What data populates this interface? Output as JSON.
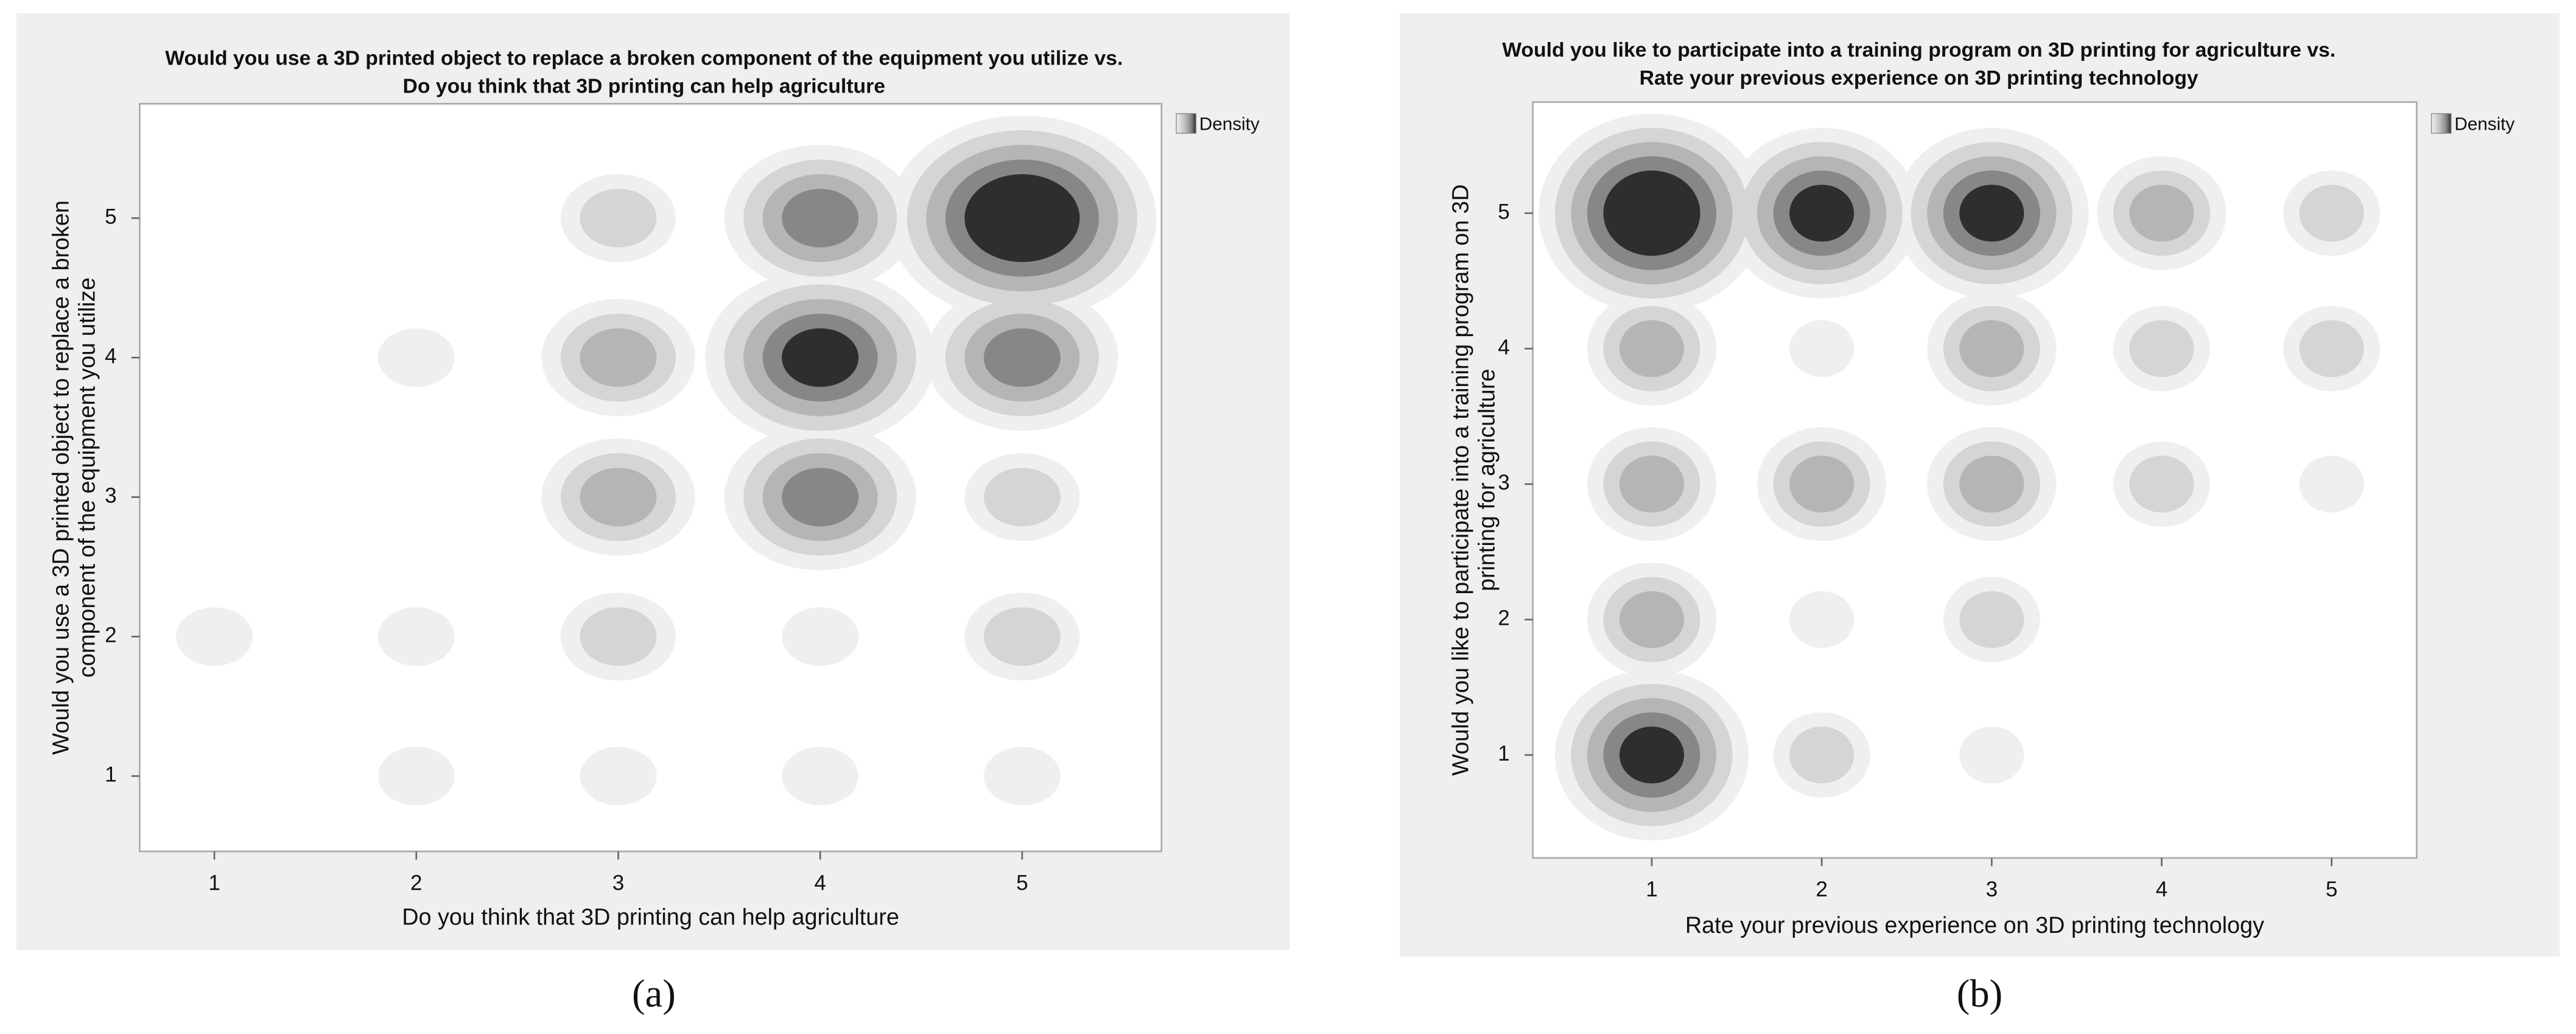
{
  "chart_data": [
    {
      "type": "contour",
      "title": [
        "Would you use a 3D printed object to replace a broken component of the equipment you utilize vs.",
        "Do you think that 3D printing can help agriculture"
      ],
      "x_label": "Do you think that 3D printing can help agriculture",
      "y_label": [
        "Would you use a 3D printed object to replace a broken",
        "component of the equipment you utilize"
      ],
      "legend": "Density",
      "caption": "(a)",
      "xlim": [
        0.63,
        5.69
      ],
      "ylim": [
        0.46,
        5.82
      ],
      "xticks": [
        1,
        2,
        3,
        4,
        5
      ],
      "yticks": [
        1,
        2,
        3,
        4,
        5
      ],
      "colors": [
        "#efefef",
        "#d5d5d5",
        "#b5b5b5",
        "#878787",
        "#2e2e2e"
      ],
      "points": {
        "x": [
          1,
          2,
          2,
          2,
          3,
          3,
          3,
          3,
          3,
          4,
          4,
          4,
          4,
          4,
          5,
          5,
          5,
          5,
          5
        ],
        "y": [
          2,
          2,
          1,
          4,
          5,
          4,
          3,
          2,
          1,
          5,
          4,
          3,
          2,
          1,
          5,
          4,
          3,
          2,
          1
        ],
        "density": [
          1,
          1,
          1,
          1,
          2,
          3,
          3,
          2,
          1,
          4,
          5,
          4,
          1,
          1,
          6,
          4,
          2,
          2,
          1
        ]
      }
    },
    {
      "type": "contour",
      "title": [
        "Would you like to participate into a training program on 3D printing for agriculture vs.",
        "Rate your previous experience on 3D printing technology"
      ],
      "x_label": "Rate your previous experience on 3D printing technology",
      "y_label": [
        "Would you like to participate into a training program on 3D",
        "printing for agriculture"
      ],
      "legend": "Density",
      "caption": "(b)",
      "xlim": [
        0.3,
        5.5
      ],
      "ylim": [
        0.24,
        5.82
      ],
      "xticks": [
        1,
        2,
        3,
        4,
        5
      ],
      "yticks": [
        1,
        2,
        3,
        4,
        5
      ],
      "colors": [
        "#efefef",
        "#d5d5d5",
        "#b5b5b5",
        "#878787",
        "#2e2e2e"
      ],
      "points": {
        "x": [
          1,
          1,
          1,
          1,
          1,
          2,
          2,
          2,
          2,
          2,
          3,
          3,
          3,
          3,
          3,
          4,
          4,
          4,
          5,
          5,
          5
        ],
        "y": [
          5,
          4,
          3,
          2,
          1,
          5,
          4,
          3,
          2,
          1,
          5,
          4,
          3,
          2,
          1,
          5,
          4,
          3,
          5,
          4,
          3
        ],
        "density": [
          6,
          3,
          3,
          3,
          5,
          5,
          1,
          3,
          1,
          2,
          5,
          3,
          3,
          2,
          1,
          3,
          2,
          2,
          2,
          2,
          1
        ]
      }
    }
  ]
}
